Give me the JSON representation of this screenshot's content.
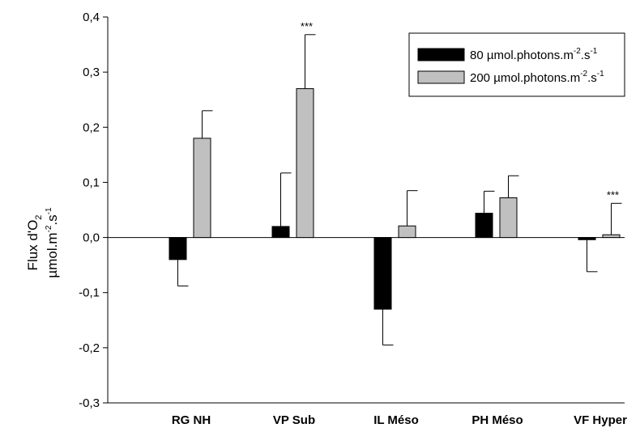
{
  "chart_data": {
    "type": "bar",
    "categories": [
      "RG NH",
      "VP Sub",
      "IL Méso",
      "PH Méso",
      "VF Hyper"
    ],
    "series": [
      {
        "name": "80 µmol.photons.m-2.s-1",
        "name_parts": {
          "base": "80 µmol.photons.m",
          "sup1": "-2",
          "mid": ".s",
          "sup2": "-1"
        },
        "color": "#000000",
        "values": [
          -0.04,
          0.02,
          -0.13,
          0.044,
          -0.004
        ],
        "errors": [
          0.048,
          0.097,
          0.065,
          0.04,
          0.058
        ],
        "significance": [
          "",
          "",
          "",
          "",
          ""
        ]
      },
      {
        "name": "200 µmol.photons.m-2.s-1",
        "name_parts": {
          "base": "200 µmol.photons.m",
          "sup1": "-2",
          "mid": ".s",
          "sup2": "-1"
        },
        "color": "#c0c0c0",
        "values": [
          0.18,
          0.27,
          0.021,
          0.072,
          0.005
        ],
        "errors": [
          0.05,
          0.098,
          0.064,
          0.04,
          0.057
        ],
        "significance": [
          "",
          "***",
          "",
          "",
          "***"
        ]
      }
    ],
    "ylim": [
      -0.3,
      0.4
    ],
    "yticks": [
      -0.3,
      -0.2,
      -0.1,
      0.0,
      0.1,
      0.2,
      0.3,
      0.4
    ],
    "ytick_labels": [
      "-0,3",
      "-0,2",
      "-0,1",
      "0,0",
      "0,1",
      "0,2",
      "0,3",
      "0,4"
    ],
    "ylabel_line1": {
      "base": "Flux d'O",
      "sub": "2"
    },
    "ylabel_line2": {
      "base": "µmol.m",
      "sup1": "-2",
      "mid": ".s",
      "sup2": "-1"
    },
    "xlabel": "",
    "title": "",
    "legend_position": "top-right",
    "grid": false
  }
}
